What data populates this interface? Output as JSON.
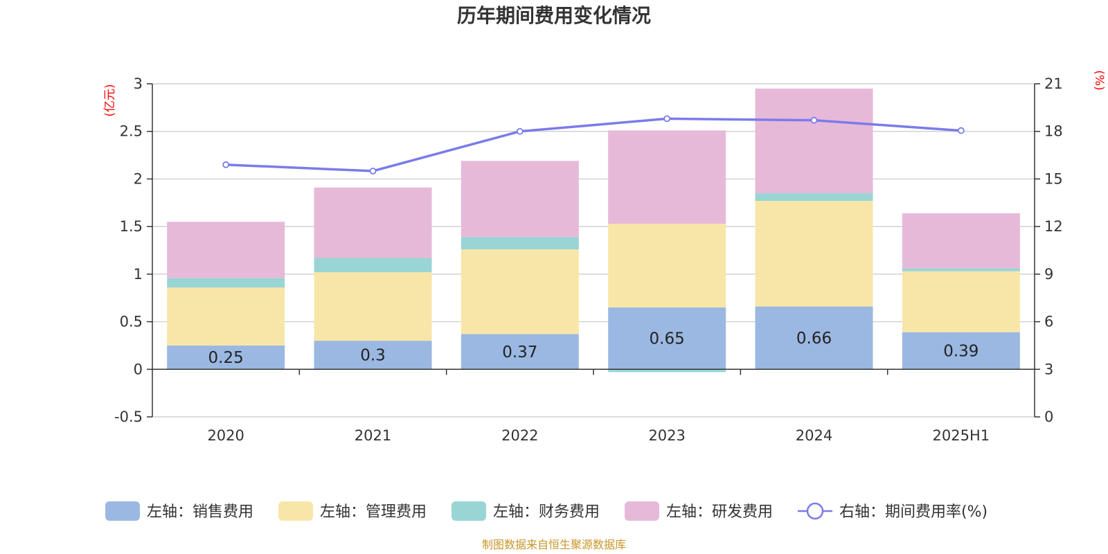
{
  "chart_data": {
    "type": "bar",
    "stacked": true,
    "title": "历年期间费用变化情况",
    "categories": [
      "2020",
      "2021",
      "2022",
      "2023",
      "2024",
      "2025H1"
    ],
    "y_left": {
      "unit": "(亿元)",
      "lim": [
        -0.5,
        3
      ],
      "ticks": [
        -0.5,
        0,
        0.5,
        1,
        1.5,
        2,
        2.5,
        3
      ]
    },
    "y_right": {
      "unit": "(%)",
      "lim": [
        0,
        21
      ],
      "ticks": [
        0,
        3,
        6,
        9,
        12,
        15,
        18,
        21
      ]
    },
    "grid": true,
    "legend_position": "bottom",
    "series": [
      {
        "name": "左轴：销售费用",
        "axis": "left",
        "color": "#9bb8e2",
        "values": [
          0.25,
          0.3,
          0.37,
          0.65,
          0.66,
          0.39
        ],
        "show_labels": true
      },
      {
        "name": "左轴：管理费用",
        "axis": "left",
        "color": "#f8e6a8",
        "values": [
          0.61,
          0.72,
          0.89,
          0.88,
          1.11,
          0.64
        ]
      },
      {
        "name": "左轴：财务费用",
        "axis": "left",
        "color": "#98d5d4",
        "values": [
          0.1,
          0.15,
          0.13,
          -0.03,
          0.08,
          0.03
        ]
      },
      {
        "name": "左轴：研发费用",
        "axis": "left",
        "color": "#e7b9d9",
        "values": [
          0.59,
          0.74,
          0.8,
          0.98,
          1.1,
          0.58
        ]
      },
      {
        "name": "右轴：期间费用率(%)",
        "axis": "right",
        "type": "line",
        "color": "#7a7bea",
        "values": [
          15.9,
          15.5,
          18.0,
          18.8,
          18.7,
          18.05
        ]
      }
    ],
    "source": "制图数据来自恒生聚源数据库"
  }
}
